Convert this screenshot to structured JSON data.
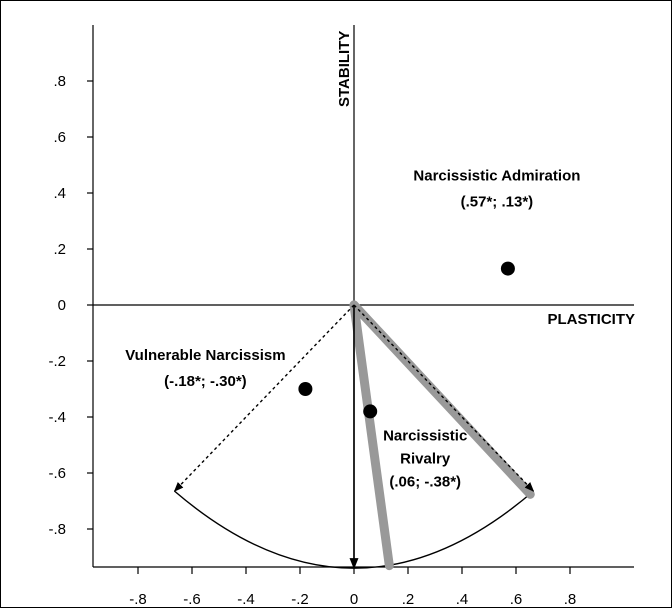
{
  "chart_data": {
    "type": "scatter",
    "xlabel": "PLASTICITY",
    "ylabel": "STABILITY",
    "xlim": [
      -0.98,
      1.05
    ],
    "ylim": [
      -0.95,
      1.0
    ],
    "x_ticks": [
      {
        "value": -0.8,
        "label": "-.8"
      },
      {
        "value": -0.6,
        "label": "-.6"
      },
      {
        "value": -0.4,
        "label": "-.4"
      },
      {
        "value": -0.2,
        "label": "-.2"
      },
      {
        "value": 0,
        "label": "0"
      },
      {
        "value": 0.2,
        "label": ".2"
      },
      {
        "value": 0.4,
        "label": ".4"
      },
      {
        "value": 0.6,
        "label": ".6"
      },
      {
        "value": 0.8,
        "label": ".8"
      }
    ],
    "y_ticks": [
      {
        "value": 0.8,
        "label": ".8"
      },
      {
        "value": 0.6,
        "label": ".6"
      },
      {
        "value": 0.4,
        "label": ".4"
      },
      {
        "value": 0.2,
        "label": ".2"
      },
      {
        "value": 0,
        "label": "0"
      },
      {
        "value": -0.2,
        "label": "-.2"
      },
      {
        "value": -0.4,
        "label": "-.4"
      },
      {
        "value": -0.6,
        "label": "-.6"
      },
      {
        "value": -0.8,
        "label": "-.8"
      }
    ],
    "points": [
      {
        "label_lines": [
          "Narcissistic Admiration",
          "(.57*; .13*)"
        ],
        "x": 0.57,
        "y": 0.13
      },
      {
        "label_lines": [
          "Vulnerable Narcissism",
          "(-.18*; -.30*)"
        ],
        "x": -0.18,
        "y": -0.3
      },
      {
        "label_lines": [
          "Narcissistic",
          "Rivalry",
          "(.06; -.38*)"
        ],
        "x": 0.06,
        "y": -0.38
      }
    ],
    "fan": {
      "radius": 0.94,
      "dashed_rays_deg": [
        225,
        315
      ],
      "solid_ray_deg": 270,
      "highlight_rays_deg": [
        -46,
        -82
      ]
    },
    "grid": false,
    "legend": "none",
    "colors": {
      "axis": "#000000",
      "marker": "#000000",
      "highlight": "#999999"
    }
  }
}
